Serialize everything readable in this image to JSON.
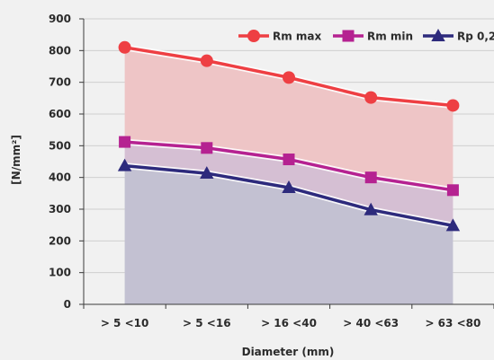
{
  "chart_data": {
    "type": "area",
    "categories": [
      "> 5 <10",
      "> 5 <16",
      "> 16 <40",
      "> 40 <63",
      "> 63 <80"
    ],
    "series": [
      {
        "name": "Rm max",
        "values": [
          810,
          768,
          715,
          652,
          627
        ],
        "color": "#ee3f43",
        "marker": "circle"
      },
      {
        "name": "Rm min",
        "values": [
          512,
          493,
          457,
          400,
          360
        ],
        "color": "#b52291",
        "marker": "square"
      },
      {
        "name": "Rp 0,2",
        "values": [
          437,
          413,
          368,
          298,
          248
        ],
        "color": "#2d2a7c",
        "marker": "triangle"
      }
    ],
    "fill_colors": {
      "upper": "#eec5c6",
      "middle": "#d5bfd3",
      "lower": "#c3c1d2"
    },
    "xlabel": "Diameter (mm)",
    "ylabel": "[N/mm²]",
    "ylim": [
      0,
      900
    ],
    "yticks": [
      0,
      100,
      200,
      300,
      400,
      500,
      600,
      700,
      800,
      900
    ],
    "grid": true,
    "legend_position": "top-right"
  }
}
